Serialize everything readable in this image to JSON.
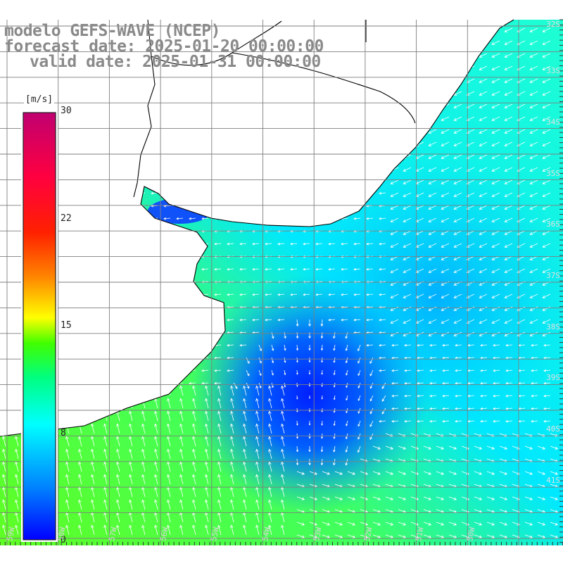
{
  "header": {
    "model_line": "modelo GEFS-WAVE (NCEP)",
    "forecast_line": "forecast date: 2025-01-20 00:00:00",
    "valid_line": "valid date: 2025-01-31 00:00:00"
  },
  "colorbar": {
    "unit": "[m/s]",
    "range": [
      0,
      30
    ],
    "tick_labels": [
      "30",
      "22",
      "15",
      "8",
      "0"
    ],
    "tick_values": [
      30,
      22,
      15,
      8,
      0
    ],
    "colors": [
      "#0000ff",
      "#00a0ff",
      "#00ffff",
      "#00ff60",
      "#20ff00",
      "#ffff00",
      "#ff8000",
      "#ff2000",
      "#ff0040",
      "#c00080"
    ]
  },
  "map": {
    "field": "wind speed and direction",
    "latitude_labels": [
      "32S",
      "33S",
      "34S",
      "35S",
      "36S",
      "37S",
      "38S",
      "39S",
      "40S",
      "41S"
    ],
    "longitude_labels": [
      "59W",
      "58W",
      "57W",
      "56W",
      "55W",
      "54W",
      "53W",
      "52W",
      "51W",
      "50W"
    ],
    "land_color": "#ffffff",
    "coastline_color": "#000000",
    "grid_color": "#7f7f7f",
    "vector_color": "#ffffff"
  }
}
